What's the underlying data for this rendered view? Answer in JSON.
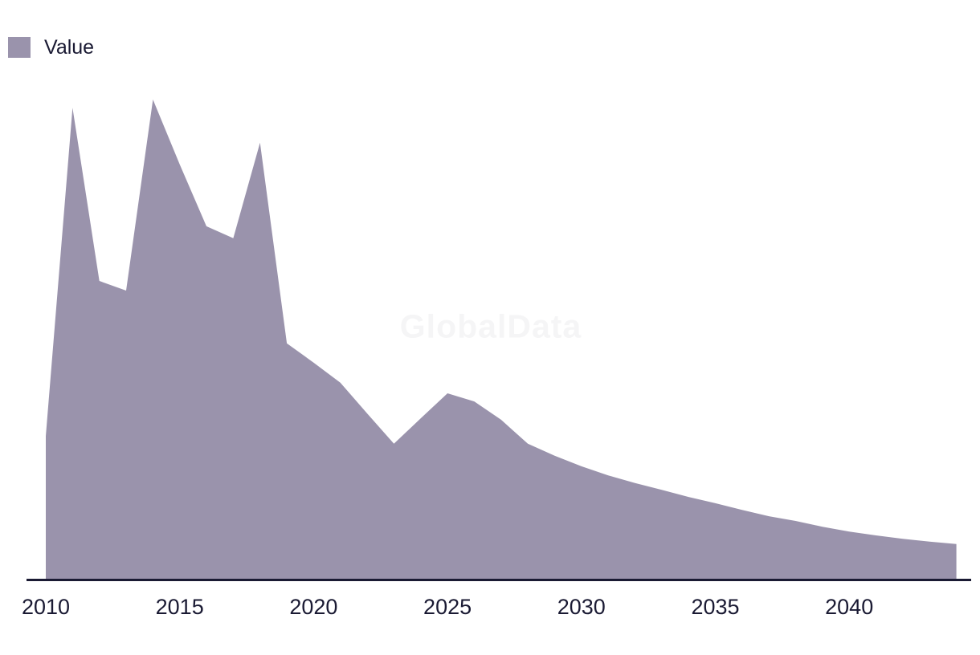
{
  "legend": {
    "label": "Value"
  },
  "watermark": "GlobalData",
  "colors": {
    "area_fill": "#9a93ac",
    "axis_line": "#1a1a33",
    "text": "#1a1a33",
    "watermark": "#f5f5f6",
    "background": "#ffffff"
  },
  "x_axis": {
    "tick_labels": [
      "2010",
      "2015",
      "2020",
      "2025",
      "2030",
      "2035",
      "2040"
    ]
  },
  "chart_data": {
    "type": "area",
    "title": "",
    "xlabel": "",
    "ylabel": "",
    "grid": false,
    "y_axis_visible": false,
    "legend_position": "top-left",
    "legend_entries": [
      "Value"
    ],
    "value_scale": "relative units, percent of 2014 peak (no y-axis labels shown in chart)",
    "x_tick_labels": [
      2010,
      2015,
      2020,
      2025,
      2030,
      2035,
      2040
    ],
    "xlim": [
      2010,
      2044
    ],
    "ylim": [
      0,
      100
    ],
    "series": [
      {
        "name": "Value",
        "x": [
          2010,
          2011,
          2012,
          2013,
          2014,
          2015,
          2016,
          2017,
          2018,
          2019,
          2020,
          2021,
          2022,
          2023,
          2024,
          2025,
          2026,
          2027,
          2028,
          2029,
          2030,
          2031,
          2032,
          2033,
          2034,
          2035,
          2036,
          2037,
          2038,
          2039,
          2040,
          2041,
          2042,
          2043,
          2044
        ],
        "values": [
          29.9,
          98.3,
          62.2,
          60.2,
          100,
          86.5,
          73.6,
          71.1,
          91.0,
          49.2,
          45.2,
          41.0,
          34.6,
          28.3,
          33.6,
          38.8,
          37.1,
          33.3,
          28.3,
          25.8,
          23.6,
          21.7,
          20.1,
          18.7,
          17.2,
          15.9,
          14.5,
          13.2,
          12.2,
          11.0,
          10.0,
          9.2,
          8.5,
          7.9,
          7.4
        ]
      }
    ]
  }
}
